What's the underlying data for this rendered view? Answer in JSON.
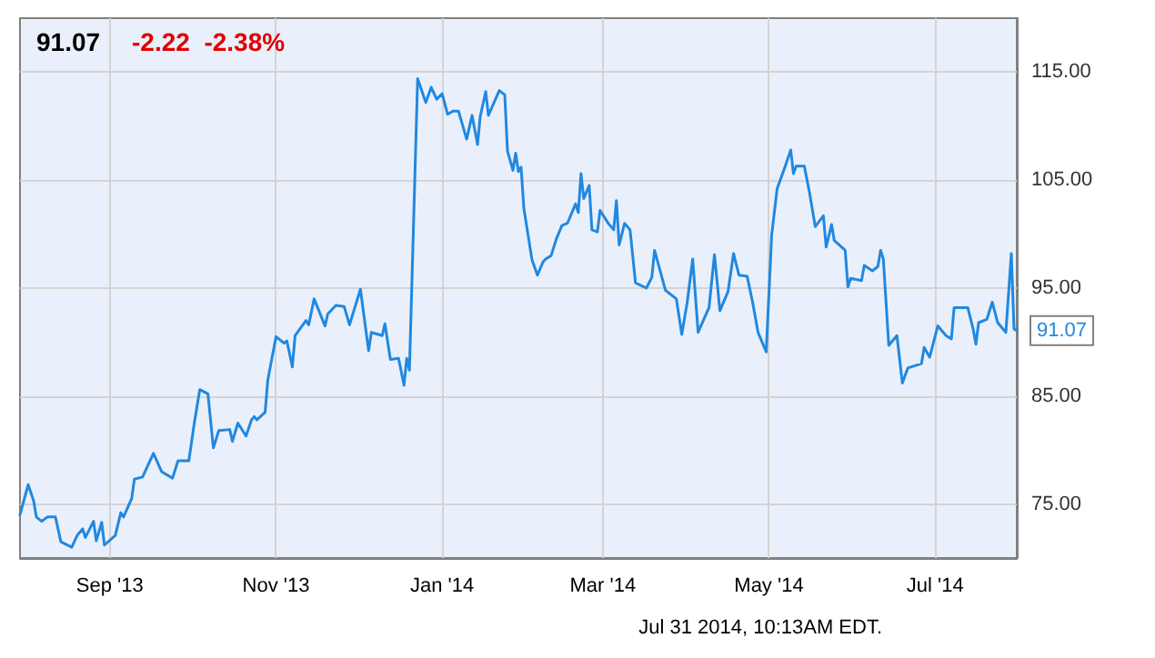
{
  "chart_data": {
    "type": "line",
    "title": "91.07",
    "subtitle": "-2.22 -2.38%",
    "x": [
      "2013-07-30",
      "2013-08-02",
      "2013-08-04",
      "2013-08-05",
      "2013-08-07",
      "2013-08-09",
      "2013-08-12",
      "2013-08-14",
      "2013-08-18",
      "2013-08-20",
      "2013-08-22",
      "2013-08-23",
      "2013-08-26",
      "2013-08-27",
      "2013-08-29",
      "2013-08-30",
      "2013-09-03",
      "2013-09-05",
      "2013-09-06",
      "2013-09-09",
      "2013-09-10",
      "2013-09-13",
      "2013-09-17",
      "2013-09-20",
      "2013-09-24",
      "2013-09-26",
      "2013-09-30",
      "2013-10-02",
      "2013-10-04",
      "2013-10-07",
      "2013-10-09",
      "2013-10-11",
      "2013-10-15",
      "2013-10-16",
      "2013-10-18",
      "2013-10-21",
      "2013-10-23",
      "2013-10-24",
      "2013-10-25",
      "2013-10-28",
      "2013-10-29",
      "2013-11-01",
      "2013-11-04",
      "2013-11-05",
      "2013-11-07",
      "2013-11-08",
      "2013-11-12",
      "2013-11-13",
      "2013-11-15",
      "2013-11-19",
      "2013-11-20",
      "2013-11-23",
      "2013-11-26",
      "2013-11-28",
      "2013-12-02",
      "2013-12-05",
      "2013-12-06",
      "2013-12-10",
      "2013-12-11",
      "2013-12-13",
      "2013-12-16",
      "2013-12-18",
      "2013-12-19",
      "2013-12-20",
      "2013-12-23",
      "2013-12-26",
      "2013-12-28",
      "2013-12-30",
      "2014-01-01",
      "2014-01-03",
      "2014-01-05",
      "2014-01-07",
      "2014-01-10",
      "2014-01-12",
      "2014-01-14",
      "2014-01-15",
      "2014-01-17",
      "2014-01-18",
      "2014-01-22",
      "2014-01-24",
      "2014-01-25",
      "2014-01-27",
      "2014-01-28",
      "2014-01-29",
      "2014-01-30",
      "2014-01-31",
      "2014-02-03",
      "2014-02-05",
      "2014-02-07",
      "2014-02-08",
      "2014-02-10",
      "2014-02-12",
      "2014-02-14",
      "2014-02-16",
      "2014-02-19",
      "2014-02-20",
      "2014-02-21",
      "2014-02-22",
      "2014-02-24",
      "2014-02-25",
      "2014-02-27",
      "2014-02-28",
      "2014-03-03",
      "2014-03-05",
      "2014-03-06",
      "2014-03-07",
      "2014-03-09",
      "2014-03-11",
      "2014-03-13",
      "2014-03-17",
      "2014-03-19",
      "2014-03-20",
      "2014-03-24",
      "2014-03-26",
      "2014-03-28",
      "2014-03-30",
      "2014-04-01",
      "2014-04-03",
      "2014-04-05",
      "2014-04-09",
      "2014-04-11",
      "2014-04-13",
      "2014-04-16",
      "2014-04-18",
      "2014-04-20",
      "2014-04-23",
      "2014-04-25",
      "2014-04-27",
      "2014-04-30",
      "2014-05-02",
      "2014-05-04",
      "2014-05-07",
      "2014-05-09",
      "2014-05-10",
      "2014-05-11",
      "2014-05-14",
      "2014-05-16",
      "2014-05-18",
      "2014-05-21",
      "2014-05-22",
      "2014-05-24",
      "2014-05-25",
      "2014-05-29",
      "2014-05-30",
      "2014-05-31",
      "2014-06-04",
      "2014-06-05",
      "2014-06-08",
      "2014-06-10",
      "2014-06-11",
      "2014-06-12",
      "2014-06-14",
      "2014-06-17",
      "2014-06-19",
      "2014-06-21",
      "2014-06-26",
      "2014-06-27",
      "2014-06-29",
      "2014-07-02",
      "2014-07-05",
      "2014-07-07",
      "2014-07-08",
      "2014-07-13",
      "2014-07-15",
      "2014-07-16",
      "2014-07-17",
      "2014-07-20",
      "2014-07-22",
      "2014-07-24",
      "2014-07-27",
      "2014-07-29",
      "2014-07-30",
      "2014-07-31"
    ],
    "series": [
      {
        "color": "#2188e0",
        "values": [
          74.0,
          76.8,
          75.3,
          73.8,
          73.4,
          73.8,
          73.8,
          71.5,
          71.0,
          72.1,
          72.7,
          71.9,
          73.4,
          71.6,
          73.3,
          71.2,
          72.1,
          74.2,
          73.8,
          75.5,
          77.3,
          77.5,
          79.7,
          78.0,
          77.4,
          79.0,
          79.0,
          82.5,
          85.6,
          85.2,
          80.2,
          81.8,
          81.9,
          80.8,
          82.5,
          81.3,
          82.8,
          83.1,
          82.8,
          83.5,
          86.5,
          90.5,
          89.9,
          90.1,
          87.7,
          90.6,
          92.0,
          91.6,
          94.0,
          91.5,
          92.6,
          93.4,
          93.3,
          91.6,
          94.9,
          89.2,
          90.9,
          90.6,
          91.7,
          88.4,
          88.5,
          86.0,
          88.5,
          87.4,
          114.4,
          112.2,
          113.6,
          112.5,
          113.0,
          111.1,
          111.4,
          111.4,
          108.8,
          111.0,
          108.3,
          110.9,
          113.2,
          111.0,
          113.3,
          112.9,
          107.7,
          105.9,
          107.5,
          105.8,
          106.2,
          102.4,
          97.6,
          96.2,
          97.4,
          97.7,
          98.0,
          99.6,
          100.8,
          101.0,
          102.8,
          102.0,
          105.6,
          103.3,
          104.5,
          100.4,
          100.2,
          102.2,
          101.0,
          100.4,
          103.1,
          99.0,
          101.0,
          100.4,
          95.5,
          95.0,
          96.0,
          98.5,
          94.8,
          94.4,
          94.0,
          90.7,
          93.7,
          97.7,
          90.9,
          93.2,
          98.1,
          92.9,
          94.7,
          98.2,
          96.2,
          96.1,
          93.7,
          90.9,
          89.1,
          99.9,
          104.2,
          106.3,
          107.8,
          105.6,
          106.3,
          106.3,
          103.7,
          100.7,
          101.7,
          98.8,
          100.9,
          99.4,
          98.5,
          95.1,
          95.9,
          95.7,
          97.1,
          96.6,
          97.0,
          98.5,
          97.7,
          89.7,
          90.6,
          86.2,
          87.6,
          88.0,
          89.5,
          88.6,
          91.5,
          90.6,
          90.3,
          93.2,
          93.2,
          91.2,
          89.8,
          91.8,
          92.1,
          93.7,
          91.8,
          90.9,
          98.2,
          91.2,
          91.07
        ]
      }
    ],
    "xlim": [
      "2013-07-30",
      "2014-07-31"
    ],
    "xticks": [
      {
        "value": "2013-09-01",
        "label": "Sep '13"
      },
      {
        "value": "2013-11-01",
        "label": "Nov '13"
      },
      {
        "value": "2014-01-01",
        "label": "Jan '14"
      },
      {
        "value": "2014-03-01",
        "label": "Mar '14"
      },
      {
        "value": "2014-05-01",
        "label": "May '14"
      },
      {
        "value": "2014-07-01",
        "label": "Jul '14"
      }
    ],
    "ylim": [
      70,
      120
    ],
    "yticks": [
      {
        "value": 75,
        "label": "75.00"
      },
      {
        "value": 85,
        "label": "85.00"
      },
      {
        "value": 95,
        "label": "95.00"
      },
      {
        "value": 105,
        "label": "105.00"
      },
      {
        "value": 115,
        "label": "115.00"
      }
    ],
    "grid": true,
    "marker": "none",
    "line_style": "solid",
    "annotations": [
      {
        "text": "91.07",
        "x": "2014-07-31",
        "y": 91.07
      },
      "Jul 31 2014, 10:13AM EDT."
    ]
  }
}
